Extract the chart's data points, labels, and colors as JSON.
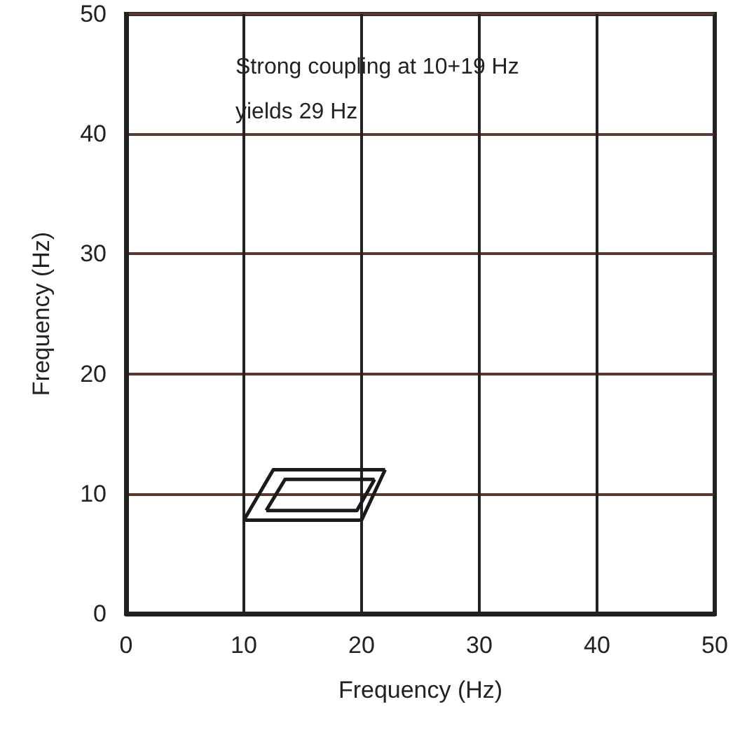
{
  "chart_data": {
    "type": "line",
    "xlabel": "Frequency (Hz)",
    "ylabel": "Frequency (Hz)",
    "annotations": [
      "Strong coupling at 10+19 Hz",
      "yields 29 Hz"
    ],
    "series": [
      {
        "color": "#1a1a1a",
        "x": [
          10,
          20,
          22
        ],
        "values": [
          7.8,
          7.8,
          12
        ]
      },
      {
        "color": "#1a1a1a",
        "x": [
          10,
          12.5,
          22
        ],
        "values": [
          7.8,
          12,
          12
        ]
      },
      {
        "color": "#1a1a1a",
        "x": [
          11.9,
          19.6,
          21.1
        ],
        "values": [
          8.6,
          8.6,
          11.2
        ]
      },
      {
        "color": "#1a1a1a",
        "x": [
          11.9,
          13.5,
          21.1
        ],
        "values": [
          8.6,
          11.2,
          11.2
        ]
      }
    ],
    "xlim": [
      0,
      50
    ],
    "xticks": [
      0,
      10,
      20,
      30,
      40,
      50
    ],
    "ylim": [
      0,
      50
    ],
    "yticks": [
      0,
      10,
      20,
      30,
      40,
      50
    ],
    "grid": true
  }
}
